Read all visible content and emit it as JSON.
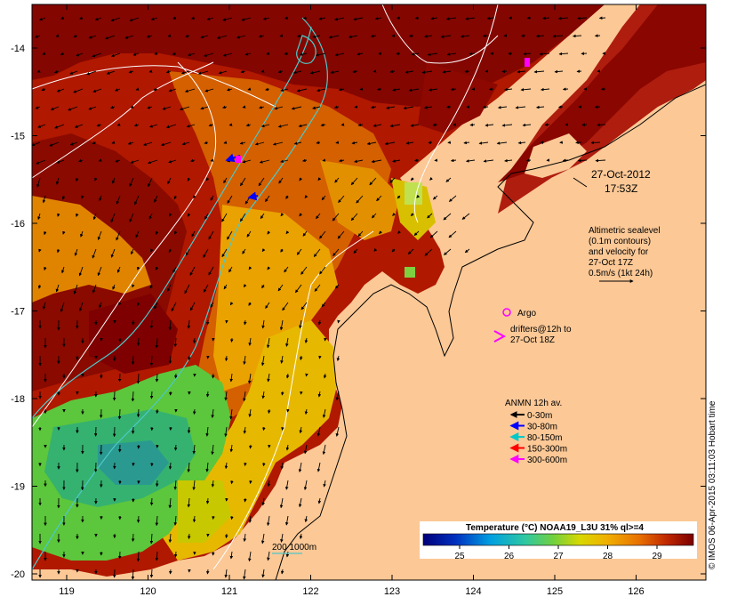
{
  "map": {
    "x_ticks": [
      "119",
      "120",
      "121",
      "122",
      "123",
      "124",
      "125",
      "126"
    ],
    "y_ticks": [
      "-14",
      "-15",
      "-16",
      "-17",
      "-18",
      "-19",
      "-20"
    ],
    "timestamp": {
      "date": "27-Oct-2012",
      "time": "17:53Z"
    },
    "sealevel_note": [
      "Altimetric sealevel",
      "(0.1m contours)",
      "and velocity for",
      "27-Oct 17Z",
      "0.5m/s (1kt 24h)"
    ],
    "argo_label": "Argo",
    "drifters_label": [
      "drifters@12h to",
      "27-Oct 18Z"
    ],
    "anmn": {
      "title": "ANMN 12h av.",
      "items": [
        {
          "label": "0-30m",
          "color": "#000000"
        },
        {
          "label": "30-80m",
          "color": "#0000ff"
        },
        {
          "label": "80-150m",
          "color": "#00c8c8"
        },
        {
          "label": "150-300m",
          "color": "#ff0000"
        },
        {
          "label": "300-600m",
          "color": "#ff00ff"
        }
      ]
    },
    "isobath_label": "200  1000m",
    "colorbar": {
      "title": "Temperature (°C) NOAA19_L3U 31% ql>=4",
      "ticks": [
        "25",
        "26",
        "27",
        "28",
        "29"
      ]
    },
    "credit": "© IMOS 06-Apr-2015 03:11:03 Hobart time",
    "colors": {
      "land": "#fbc896",
      "warm": "#a60a00",
      "hot": "#800000",
      "mid": "#cf5a00",
      "orange": "#e98a00",
      "yellow": "#eab900",
      "green": "#4fc43a",
      "teal": "#2aa58a",
      "contour": "#ffffff",
      "isobath": "#4ec8c8"
    }
  }
}
